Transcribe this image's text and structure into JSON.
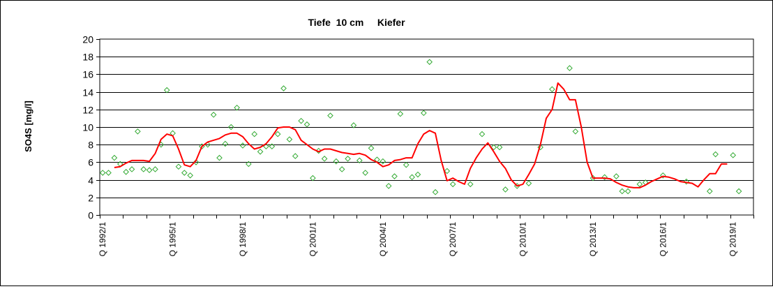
{
  "chart_data": {
    "type": "line",
    "title": "Tiefe  10 cm     Kiefer",
    "ylabel": "SO4S [mg/l]",
    "xlabel": "",
    "ylim": [
      0,
      20
    ],
    "yticks": [
      0,
      2,
      4,
      6,
      8,
      10,
      12,
      14,
      16,
      18,
      20
    ],
    "grid": "horizontal",
    "legend": "none",
    "x_tick_labels": [
      "Q 1992/1",
      "Q 1995/1",
      "Q 1998/1",
      "Q 2001/1",
      "Q 2004/1",
      "Q 2007/1",
      "Q 2010/1",
      "Q 2013/1",
      "Q 2016/1",
      "Q 2019/1"
    ],
    "x_tick_quarter_index": [
      0,
      12,
      24,
      36,
      48,
      60,
      72,
      84,
      96,
      108
    ],
    "quarters_total": 112,
    "colors": {
      "line": "#ff0000",
      "markers": "#33aa33",
      "grid": "#000000",
      "plot_bg": "#ffffff"
    },
    "series": [
      {
        "type": "scatter",
        "marker": "diamond",
        "points": [
          [
            0,
            4.8
          ],
          [
            1,
            4.8
          ],
          [
            2,
            6.5
          ],
          [
            3,
            5.8
          ],
          [
            4,
            4.9
          ],
          [
            5,
            5.2
          ],
          [
            6,
            9.5
          ],
          [
            7,
            5.2
          ],
          [
            8,
            5.1
          ],
          [
            9,
            5.2
          ],
          [
            10,
            8.0
          ],
          [
            11,
            14.2
          ],
          [
            12,
            9.3
          ],
          [
            13,
            5.5
          ],
          [
            14,
            4.8
          ],
          [
            15,
            4.5
          ],
          [
            16,
            6.0
          ],
          [
            17,
            7.8
          ],
          [
            18,
            8.0
          ],
          [
            19,
            11.4
          ],
          [
            20,
            6.5
          ],
          [
            21,
            8.1
          ],
          [
            22,
            10.0
          ],
          [
            23,
            12.2
          ],
          [
            24,
            7.9
          ],
          [
            25,
            5.8
          ],
          [
            26,
            9.2
          ],
          [
            27,
            7.2
          ],
          [
            28,
            7.8
          ],
          [
            29,
            7.8
          ],
          [
            30,
            9.2
          ],
          [
            31,
            14.4
          ],
          [
            32,
            8.6
          ],
          [
            33,
            6.7
          ],
          [
            34,
            10.7
          ],
          [
            35,
            10.3
          ],
          [
            36,
            4.2
          ],
          [
            37,
            7.3
          ],
          [
            38,
            6.4
          ],
          [
            39,
            11.3
          ],
          [
            40,
            6.1
          ],
          [
            41,
            5.2
          ],
          [
            42,
            6.4
          ],
          [
            43,
            10.2
          ],
          [
            44,
            6.2
          ],
          [
            45,
            4.8
          ],
          [
            46,
            7.6
          ],
          [
            47,
            6.3
          ],
          [
            48,
            6.1
          ],
          [
            49,
            3.3
          ],
          [
            50,
            4.4
          ],
          [
            51,
            11.5
          ],
          [
            52,
            5.7
          ],
          [
            53,
            4.3
          ],
          [
            54,
            4.6
          ],
          [
            55,
            11.6
          ],
          [
            56,
            17.4
          ],
          [
            57,
            2.6
          ],
          [
            59,
            5.0
          ],
          [
            60,
            3.5
          ],
          [
            63,
            3.5
          ],
          [
            65,
            9.2
          ],
          [
            67,
            7.7
          ],
          [
            68,
            7.7
          ],
          [
            69,
            2.9
          ],
          [
            71,
            3.3
          ],
          [
            73,
            3.6
          ],
          [
            75,
            7.7
          ],
          [
            77,
            14.3
          ],
          [
            80,
            16.7
          ],
          [
            81,
            9.5
          ],
          [
            84,
            4.2
          ],
          [
            86,
            4.3
          ],
          [
            88,
            4.4
          ],
          [
            89,
            2.7
          ],
          [
            90,
            2.7
          ],
          [
            92,
            3.5
          ],
          [
            93,
            3.7
          ],
          [
            96,
            4.5
          ],
          [
            100,
            3.8
          ],
          [
            104,
            2.7
          ],
          [
            105,
            6.9
          ],
          [
            108,
            6.8
          ],
          [
            109,
            2.7
          ]
        ]
      },
      {
        "type": "line",
        "points": [
          [
            2,
            5.4
          ],
          [
            3,
            5.5
          ],
          [
            4,
            5.9
          ],
          [
            5,
            6.2
          ],
          [
            6,
            6.2
          ],
          [
            7,
            6.2
          ],
          [
            8,
            6.1
          ],
          [
            9,
            7.0
          ],
          [
            10,
            8.6
          ],
          [
            11,
            9.2
          ],
          [
            12,
            9.0
          ],
          [
            13,
            7.5
          ],
          [
            14,
            5.7
          ],
          [
            15,
            5.5
          ],
          [
            16,
            6.2
          ],
          [
            17,
            7.8
          ],
          [
            18,
            8.3
          ],
          [
            19,
            8.5
          ],
          [
            20,
            8.7
          ],
          [
            21,
            9.1
          ],
          [
            22,
            9.3
          ],
          [
            23,
            9.3
          ],
          [
            24,
            8.9
          ],
          [
            25,
            8.1
          ],
          [
            26,
            7.5
          ],
          [
            27,
            7.7
          ],
          [
            28,
            8.1
          ],
          [
            29,
            8.9
          ],
          [
            30,
            9.9
          ],
          [
            31,
            10.0
          ],
          [
            32,
            10.0
          ],
          [
            33,
            9.7
          ],
          [
            34,
            8.5
          ],
          [
            35,
            8.0
          ],
          [
            36,
            7.5
          ],
          [
            37,
            7.2
          ],
          [
            38,
            7.5
          ],
          [
            39,
            7.5
          ],
          [
            40,
            7.3
          ],
          [
            41,
            7.1
          ],
          [
            42,
            7.0
          ],
          [
            43,
            6.9
          ],
          [
            44,
            7.0
          ],
          [
            45,
            6.8
          ],
          [
            46,
            6.3
          ],
          [
            47,
            6.0
          ],
          [
            48,
            5.5
          ],
          [
            49,
            5.7
          ],
          [
            50,
            6.2
          ],
          [
            51,
            6.3
          ],
          [
            52,
            6.5
          ],
          [
            53,
            6.5
          ],
          [
            54,
            8.1
          ],
          [
            55,
            9.2
          ],
          [
            56,
            9.6
          ],
          [
            57,
            9.3
          ],
          [
            58,
            6.2
          ],
          [
            59,
            3.9
          ],
          [
            60,
            4.2
          ],
          [
            61,
            3.8
          ],
          [
            62,
            3.5
          ],
          [
            63,
            5.3
          ],
          [
            64,
            6.5
          ],
          [
            65,
            7.5
          ],
          [
            66,
            8.2
          ],
          [
            67,
            7.2
          ],
          [
            68,
            6.1
          ],
          [
            69,
            5.3
          ],
          [
            70,
            4.0
          ],
          [
            71,
            3.3
          ],
          [
            72,
            3.5
          ],
          [
            73,
            4.6
          ],
          [
            74,
            5.8
          ],
          [
            75,
            8.0
          ],
          [
            76,
            11.0
          ],
          [
            77,
            12.0
          ],
          [
            78,
            15.0
          ],
          [
            79,
            14.3
          ],
          [
            80,
            13.1
          ],
          [
            81,
            13.1
          ],
          [
            82,
            10.0
          ],
          [
            83,
            6.0
          ],
          [
            84,
            4.2
          ],
          [
            85,
            4.2
          ],
          [
            86,
            4.2
          ],
          [
            87,
            4.1
          ],
          [
            88,
            3.7
          ],
          [
            89,
            3.4
          ],
          [
            90,
            3.2
          ],
          [
            91,
            3.1
          ],
          [
            92,
            3.1
          ],
          [
            93,
            3.4
          ],
          [
            94,
            3.8
          ],
          [
            95,
            4.1
          ],
          [
            96,
            4.4
          ],
          [
            97,
            4.3
          ],
          [
            98,
            4.1
          ],
          [
            99,
            3.8
          ],
          [
            100,
            3.7
          ],
          [
            101,
            3.6
          ],
          [
            102,
            3.2
          ],
          [
            103,
            4.0
          ],
          [
            104,
            4.7
          ],
          [
            105,
            4.7
          ],
          [
            106,
            5.8
          ],
          [
            107,
            5.8
          ]
        ]
      }
    ]
  }
}
